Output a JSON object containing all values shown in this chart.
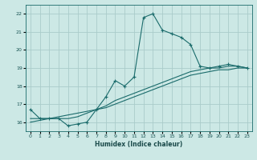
{
  "title": "",
  "xlabel": "Humidex (Indice chaleur)",
  "ylabel": "",
  "bg_color": "#cce8e5",
  "grid_color": "#aaccca",
  "line_color": "#1a6b6b",
  "xlim": [
    -0.5,
    23.5
  ],
  "ylim": [
    15.5,
    22.5
  ],
  "xticks": [
    0,
    1,
    2,
    3,
    4,
    5,
    6,
    7,
    8,
    9,
    10,
    11,
    12,
    13,
    14,
    15,
    16,
    17,
    18,
    19,
    20,
    21,
    22,
    23
  ],
  "yticks": [
    16,
    17,
    18,
    19,
    20,
    21,
    22
  ],
  "series1_x": [
    0,
    1,
    2,
    3,
    4,
    5,
    6,
    7,
    8,
    9,
    10,
    11,
    12,
    13,
    14,
    15,
    16,
    17,
    18,
    19,
    20,
    21,
    22,
    23
  ],
  "series1_y": [
    16.7,
    16.2,
    16.2,
    16.2,
    15.8,
    15.9,
    16.0,
    16.7,
    17.4,
    18.3,
    18.0,
    18.5,
    21.8,
    22.0,
    21.1,
    20.9,
    20.7,
    20.3,
    19.1,
    19.0,
    19.1,
    19.2,
    19.1,
    19.0
  ],
  "series2_x": [
    0,
    1,
    2,
    3,
    4,
    5,
    6,
    7,
    8,
    9,
    10,
    11,
    12,
    13,
    14,
    15,
    16,
    17,
    18,
    19,
    20,
    21,
    22,
    23
  ],
  "series2_y": [
    16.2,
    16.2,
    16.2,
    16.2,
    16.2,
    16.3,
    16.5,
    16.7,
    16.9,
    17.2,
    17.4,
    17.6,
    17.8,
    18.0,
    18.2,
    18.4,
    18.6,
    18.8,
    18.9,
    19.0,
    19.0,
    19.1,
    19.1,
    19.0
  ],
  "series3_x": [
    0,
    1,
    2,
    3,
    4,
    5,
    6,
    7,
    8,
    9,
    10,
    11,
    12,
    13,
    14,
    15,
    16,
    17,
    18,
    19,
    20,
    21,
    22,
    23
  ],
  "series3_y": [
    16.0,
    16.1,
    16.2,
    16.3,
    16.4,
    16.5,
    16.6,
    16.7,
    16.8,
    17.0,
    17.2,
    17.4,
    17.6,
    17.8,
    18.0,
    18.2,
    18.4,
    18.6,
    18.7,
    18.8,
    18.9,
    18.9,
    19.0,
    19.0
  ]
}
